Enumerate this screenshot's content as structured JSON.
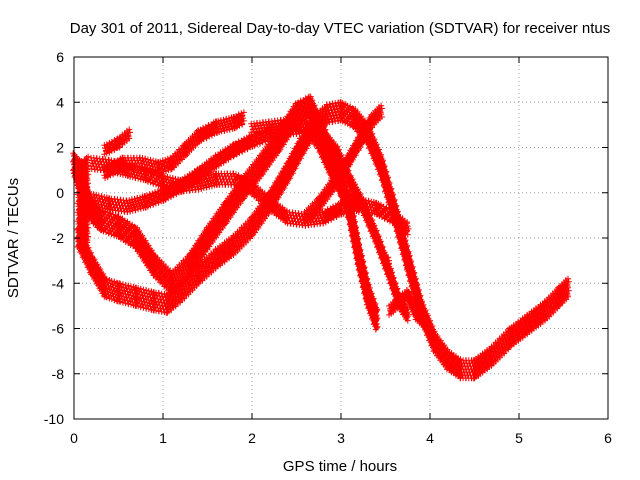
{
  "chart_data": {
    "type": "scatter",
    "title": "Day 301 of 2011, Sidereal Day-to-day VTEC variation (SDTVAR) for receiver ntus",
    "xlabel": "GPS time / hours",
    "ylabel": "SDTVAR / TECUs",
    "xlim": [
      0,
      6
    ],
    "ylim": [
      -10,
      6
    ],
    "xticks": [
      "0",
      "1",
      "2",
      "3",
      "4",
      "5",
      "6"
    ],
    "yticks": [
      "-10",
      "-8",
      "-6",
      "-4",
      "-2",
      "0",
      "2",
      "4",
      "6"
    ],
    "grid": true,
    "marker": "+",
    "series": [
      {
        "color": "#ff0000",
        "band_width": 0.9,
        "points": [
          [
            0.0,
            1.3
          ],
          [
            0.1,
            0.2
          ],
          [
            0.2,
            -0.8
          ],
          [
            0.3,
            -1.2
          ],
          [
            0.5,
            -1.5
          ],
          [
            0.7,
            -2.0
          ],
          [
            0.9,
            -3.2
          ],
          [
            1.1,
            -4.0
          ],
          [
            1.3,
            -3.2
          ],
          [
            1.5,
            -2.0
          ],
          [
            1.7,
            -0.9
          ],
          [
            1.9,
            0.2
          ],
          [
            2.1,
            1.2
          ],
          [
            2.3,
            2.3
          ],
          [
            2.5,
            3.5
          ],
          [
            2.65,
            3.8
          ],
          [
            2.8,
            2.5
          ],
          [
            2.95,
            1.0
          ],
          [
            3.1,
            -0.8
          ],
          [
            3.2,
            -2.8
          ],
          [
            3.3,
            -4.5
          ],
          [
            3.4,
            -5.6
          ]
        ]
      },
      {
        "color": "#ff0000",
        "band_width": 0.8,
        "points": [
          [
            0.05,
            -2.0
          ],
          [
            0.2,
            -3.2
          ],
          [
            0.35,
            -4.2
          ],
          [
            0.5,
            -4.4
          ],
          [
            0.7,
            -4.6
          ],
          [
            0.9,
            -4.8
          ],
          [
            1.05,
            -4.9
          ],
          [
            1.2,
            -4.4
          ],
          [
            1.4,
            -3.6
          ],
          [
            1.6,
            -2.9
          ],
          [
            1.8,
            -2.3
          ],
          [
            2.0,
            -1.5
          ],
          [
            2.2,
            -0.4
          ],
          [
            2.4,
            0.9
          ],
          [
            2.55,
            2.0
          ],
          [
            2.7,
            3.0
          ],
          [
            2.85,
            3.5
          ],
          [
            3.0,
            3.6
          ],
          [
            3.15,
            3.3
          ],
          [
            3.3,
            2.6
          ],
          [
            3.45,
            1.2
          ],
          [
            3.6,
            -0.8
          ],
          [
            3.75,
            -3.0
          ],
          [
            3.9,
            -5.2
          ],
          [
            4.05,
            -6.6
          ],
          [
            4.2,
            -7.4
          ],
          [
            4.35,
            -7.8
          ],
          [
            4.5,
            -7.8
          ],
          [
            4.7,
            -7.2
          ],
          [
            4.9,
            -6.4
          ],
          [
            5.1,
            -5.8
          ],
          [
            5.3,
            -5.2
          ],
          [
            5.45,
            -4.6
          ],
          [
            5.55,
            -4.2
          ]
        ]
      },
      {
        "color": "#ff0000",
        "band_width": 0.5,
        "points": [
          [
            0.2,
            -0.3
          ],
          [
            0.4,
            -0.5
          ],
          [
            0.6,
            -0.6
          ],
          [
            0.8,
            -0.4
          ],
          [
            1.0,
            -0.1
          ],
          [
            1.2,
            0.3
          ],
          [
            1.4,
            0.8
          ],
          [
            1.6,
            1.4
          ],
          [
            1.8,
            1.9
          ],
          [
            2.0,
            2.3
          ],
          [
            2.2,
            2.6
          ],
          [
            2.4,
            2.8
          ],
          [
            2.6,
            2.9
          ],
          [
            2.8,
            2.5
          ],
          [
            2.95,
            1.8
          ],
          [
            3.1,
            0.5
          ],
          [
            3.25,
            -0.6
          ],
          [
            3.4,
            -2.0
          ],
          [
            3.55,
            -3.6
          ],
          [
            3.65,
            -4.8
          ],
          [
            3.75,
            -5.4
          ]
        ]
      },
      {
        "color": "#ff0000",
        "band_width": 0.5,
        "points": [
          [
            0.2,
            1.3
          ],
          [
            0.4,
            1.2
          ],
          [
            0.6,
            1.0
          ],
          [
            0.8,
            0.8
          ],
          [
            1.0,
            0.5
          ],
          [
            1.2,
            0.3
          ],
          [
            1.4,
            0.4
          ],
          [
            1.6,
            0.6
          ],
          [
            1.8,
            0.6
          ],
          [
            2.0,
            0.2
          ],
          [
            2.2,
            -0.5
          ],
          [
            2.4,
            -1.1
          ],
          [
            2.6,
            -1.2
          ],
          [
            2.8,
            -1.1
          ],
          [
            3.0,
            -0.7
          ],
          [
            3.2,
            -0.5
          ],
          [
            3.4,
            -0.7
          ],
          [
            3.6,
            -1.1
          ],
          [
            3.75,
            -1.6
          ]
        ]
      },
      {
        "color": "#ff0000",
        "band_width": 0.5,
        "points": [
          [
            0.35,
            0.9
          ],
          [
            0.55,
            1.3
          ],
          [
            0.75,
            1.3
          ],
          [
            0.95,
            1.1
          ],
          [
            1.1,
            1.3
          ],
          [
            1.25,
            1.9
          ],
          [
            1.4,
            2.5
          ],
          [
            1.6,
            2.9
          ],
          [
            1.8,
            3.1
          ],
          [
            1.9,
            3.3
          ]
        ]
      },
      {
        "color": "#ff0000",
        "band_width": 0.5,
        "points": [
          [
            2.0,
            2.8
          ],
          [
            2.2,
            2.9
          ],
          [
            2.4,
            3.0
          ],
          [
            2.6,
            2.9
          ],
          [
            2.75,
            2.2
          ],
          [
            2.9,
            0.9
          ],
          [
            3.05,
            -0.2
          ],
          [
            3.2,
            -0.6
          ]
        ]
      },
      {
        "color": "#ff0000",
        "band_width": 0.4,
        "points": [
          [
            0.35,
            1.9
          ],
          [
            0.5,
            2.2
          ],
          [
            0.62,
            2.6
          ]
        ]
      },
      {
        "color": "#ff0000",
        "band_width": 0.5,
        "points": [
          [
            2.6,
            -1.1
          ],
          [
            2.75,
            -0.5
          ],
          [
            2.9,
            0.3
          ],
          [
            3.05,
            1.2
          ],
          [
            3.2,
            2.2
          ],
          [
            3.35,
            3.2
          ],
          [
            3.45,
            3.6
          ]
        ]
      },
      {
        "color": "#ff0000",
        "band_width": 0.4,
        "points": [
          [
            3.55,
            -5.2
          ],
          [
            3.65,
            -4.8
          ],
          [
            3.75,
            -4.5
          ],
          [
            3.85,
            -5.4
          ],
          [
            3.95,
            -5.8
          ]
        ]
      },
      {
        "color": "#ff0000",
        "band_width": 0.3,
        "points": [
          [
            3.53,
            -3.0
          ],
          [
            3.53,
            -3.0
          ]
        ]
      },
      {
        "color": "#ff0000",
        "band_width": 3.8,
        "points": [
          [
            0.05,
            -0.4
          ],
          [
            0.1,
            -0.6
          ],
          [
            0.15,
            -0.3
          ]
        ]
      }
    ]
  }
}
